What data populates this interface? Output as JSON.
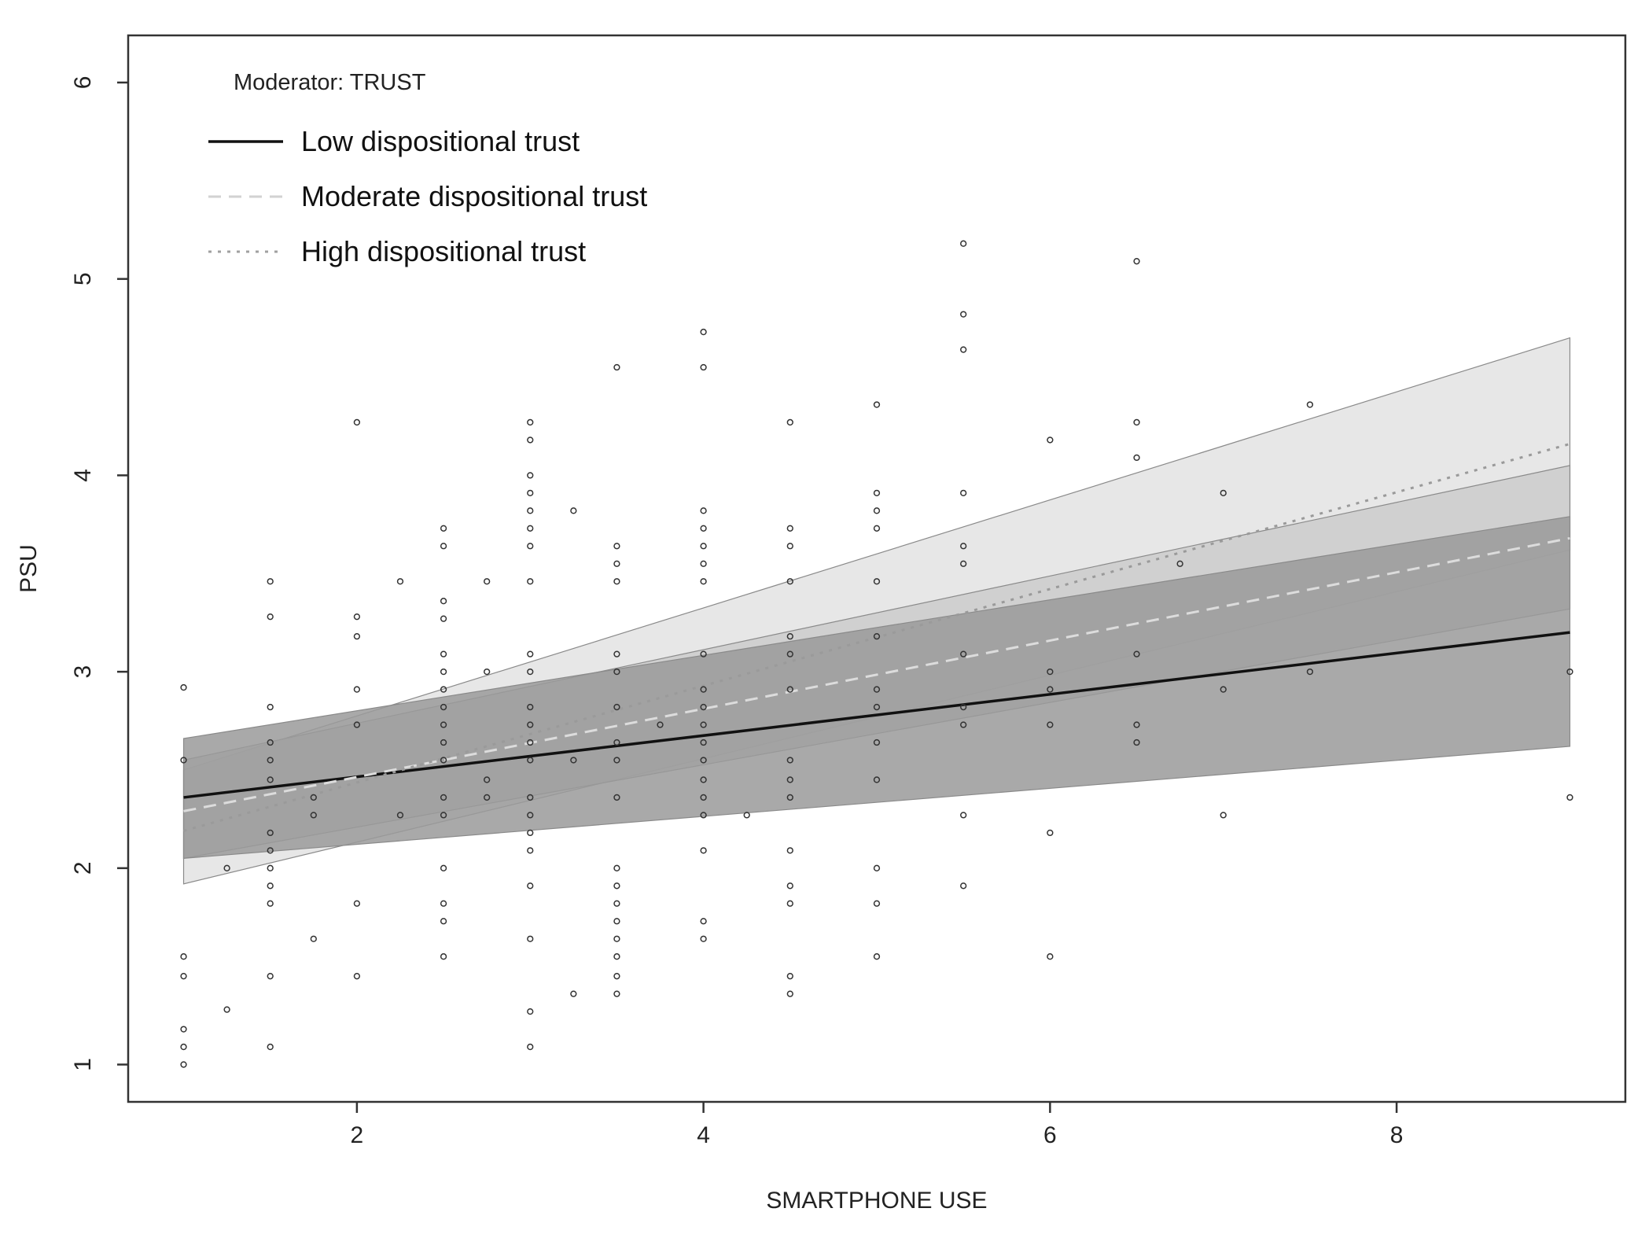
{
  "chart_data": {
    "type": "scatter",
    "title": "",
    "xlabel": "SMARTPHONE USE",
    "ylabel": "PSU",
    "xlim": [
      0.68,
      9.32
    ],
    "ylim": [
      0.81,
      6.24
    ],
    "x_ticks": [
      2,
      4,
      6,
      8
    ],
    "x_tick_labels": [
      "2",
      "4",
      "6",
      "8"
    ],
    "y_ticks": [
      1,
      2,
      3,
      4,
      5,
      6
    ],
    "y_tick_labels": [
      "1",
      "2",
      "3",
      "4",
      "5",
      "6"
    ],
    "grid": false,
    "legend": {
      "title": "Moderator: TRUST",
      "position": "top-left",
      "entries": [
        {
          "label": "Low dispositional trust",
          "style": "solid",
          "color": "#111111"
        },
        {
          "label": "Moderate dispositional trust",
          "style": "dashed",
          "color": "#d2d2d2"
        },
        {
          "label": "High dispositional trust",
          "style": "dotted",
          "color": "#a0a0a0"
        }
      ]
    },
    "series": [
      {
        "name": "Low dispositional trust",
        "line_style": "solid",
        "color": "#111111",
        "band_color": "#9a9a9a",
        "x": [
          1,
          9
        ],
        "y": [
          2.36,
          3.2
        ],
        "ci_lower": [
          2.05,
          2.62
        ],
        "ci_upper": [
          2.66,
          3.79
        ]
      },
      {
        "name": "Moderate dispositional trust",
        "line_style": "dashed",
        "color": "#dcdcdc",
        "band_color": "#c8c8c8",
        "x": [
          1,
          9
        ],
        "y": [
          2.29,
          3.68
        ],
        "ci_lower": [
          2.05,
          3.32
        ],
        "ci_upper": [
          2.55,
          4.05
        ]
      },
      {
        "name": "High dispositional trust",
        "line_style": "dotted",
        "color": "#9a9a9a",
        "band_color": "#e4e4e4",
        "x": [
          1,
          9
        ],
        "y": [
          2.19,
          4.16
        ],
        "ci_lower": [
          1.92,
          3.62
        ],
        "ci_upper": [
          2.5,
          4.7
        ]
      }
    ],
    "points": [
      [
        1,
        2.92
      ],
      [
        1,
        2.55
      ],
      [
        1,
        1.55
      ],
      [
        1,
        1.45
      ],
      [
        1,
        1.18
      ],
      [
        1,
        1.09
      ],
      [
        1,
        1.0
      ],
      [
        1.25,
        2.0
      ],
      [
        1.25,
        1.28
      ],
      [
        1.5,
        3.46
      ],
      [
        1.5,
        3.28
      ],
      [
        1.5,
        2.82
      ],
      [
        1.5,
        2.64
      ],
      [
        1.5,
        2.55
      ],
      [
        1.5,
        2.45
      ],
      [
        1.5,
        2.18
      ],
      [
        1.5,
        2.09
      ],
      [
        1.5,
        2.0
      ],
      [
        1.5,
        1.91
      ],
      [
        1.5,
        1.82
      ],
      [
        1.5,
        1.45
      ],
      [
        1.5,
        1.09
      ],
      [
        1.75,
        2.36
      ],
      [
        1.75,
        2.27
      ],
      [
        1.75,
        1.64
      ],
      [
        2,
        4.27
      ],
      [
        2,
        3.28
      ],
      [
        2,
        3.18
      ],
      [
        2,
        2.91
      ],
      [
        2,
        2.73
      ],
      [
        2,
        1.82
      ],
      [
        2,
        1.45
      ],
      [
        2.25,
        3.46
      ],
      [
        2.25,
        2.27
      ],
      [
        2.5,
        3.73
      ],
      [
        2.5,
        3.64
      ],
      [
        2.5,
        3.36
      ],
      [
        2.5,
        3.27
      ],
      [
        2.5,
        3.09
      ],
      [
        2.5,
        3.0
      ],
      [
        2.5,
        2.91
      ],
      [
        2.5,
        2.82
      ],
      [
        2.5,
        2.73
      ],
      [
        2.5,
        2.64
      ],
      [
        2.5,
        2.55
      ],
      [
        2.5,
        2.36
      ],
      [
        2.5,
        2.27
      ],
      [
        2.5,
        2.0
      ],
      [
        2.5,
        1.82
      ],
      [
        2.5,
        1.73
      ],
      [
        2.5,
        1.55
      ],
      [
        2.75,
        3.46
      ],
      [
        2.75,
        3.0
      ],
      [
        2.75,
        2.45
      ],
      [
        2.75,
        2.36
      ],
      [
        3,
        4.27
      ],
      [
        3,
        4.18
      ],
      [
        3,
        4.0
      ],
      [
        3,
        3.91
      ],
      [
        3,
        3.82
      ],
      [
        3,
        3.73
      ],
      [
        3,
        3.64
      ],
      [
        3,
        3.46
      ],
      [
        3,
        3.09
      ],
      [
        3,
        3.0
      ],
      [
        3,
        2.82
      ],
      [
        3,
        2.73
      ],
      [
        3,
        2.64
      ],
      [
        3,
        2.55
      ],
      [
        3,
        2.36
      ],
      [
        3,
        2.27
      ],
      [
        3,
        2.18
      ],
      [
        3,
        2.09
      ],
      [
        3,
        1.91
      ],
      [
        3,
        1.64
      ],
      [
        3,
        1.27
      ],
      [
        3,
        1.09
      ],
      [
        3.25,
        3.82
      ],
      [
        3.25,
        2.55
      ],
      [
        3.25,
        1.36
      ],
      [
        3.5,
        4.55
      ],
      [
        3.5,
        3.64
      ],
      [
        3.5,
        3.55
      ],
      [
        3.5,
        3.46
      ],
      [
        3.5,
        3.09
      ],
      [
        3.5,
        3.0
      ],
      [
        3.5,
        2.82
      ],
      [
        3.5,
        2.64
      ],
      [
        3.5,
        2.55
      ],
      [
        3.5,
        2.36
      ],
      [
        3.5,
        2.0
      ],
      [
        3.5,
        1.91
      ],
      [
        3.5,
        1.82
      ],
      [
        3.5,
        1.73
      ],
      [
        3.5,
        1.64
      ],
      [
        3.5,
        1.55
      ],
      [
        3.5,
        1.45
      ],
      [
        3.5,
        1.36
      ],
      [
        3.75,
        2.73
      ],
      [
        4,
        4.73
      ],
      [
        4,
        4.55
      ],
      [
        4,
        3.82
      ],
      [
        4,
        3.73
      ],
      [
        4,
        3.64
      ],
      [
        4,
        3.55
      ],
      [
        4,
        3.46
      ],
      [
        4,
        3.09
      ],
      [
        4,
        2.91
      ],
      [
        4,
        2.82
      ],
      [
        4,
        2.73
      ],
      [
        4,
        2.64
      ],
      [
        4,
        2.55
      ],
      [
        4,
        2.45
      ],
      [
        4,
        2.36
      ],
      [
        4,
        2.27
      ],
      [
        4,
        2.09
      ],
      [
        4,
        1.73
      ],
      [
        4,
        1.64
      ],
      [
        4.25,
        2.27
      ],
      [
        4.5,
        4.27
      ],
      [
        4.5,
        3.73
      ],
      [
        4.5,
        3.64
      ],
      [
        4.5,
        3.46
      ],
      [
        4.5,
        3.18
      ],
      [
        4.5,
        3.09
      ],
      [
        4.5,
        2.91
      ],
      [
        4.5,
        2.55
      ],
      [
        4.5,
        2.45
      ],
      [
        4.5,
        2.36
      ],
      [
        4.5,
        2.09
      ],
      [
        4.5,
        1.91
      ],
      [
        4.5,
        1.82
      ],
      [
        4.5,
        1.45
      ],
      [
        4.5,
        1.36
      ],
      [
        5,
        4.36
      ],
      [
        5,
        3.91
      ],
      [
        5,
        3.82
      ],
      [
        5,
        3.73
      ],
      [
        5,
        3.46
      ],
      [
        5,
        3.18
      ],
      [
        5,
        2.91
      ],
      [
        5,
        2.82
      ],
      [
        5,
        2.64
      ],
      [
        5,
        2.45
      ],
      [
        5,
        2.0
      ],
      [
        5,
        1.82
      ],
      [
        5,
        1.55
      ],
      [
        5.5,
        5.18
      ],
      [
        5.5,
        4.82
      ],
      [
        5.5,
        4.64
      ],
      [
        5.5,
        3.91
      ],
      [
        5.5,
        3.64
      ],
      [
        5.5,
        3.55
      ],
      [
        5.5,
        3.09
      ],
      [
        5.5,
        2.82
      ],
      [
        5.5,
        2.73
      ],
      [
        5.5,
        2.27
      ],
      [
        5.5,
        1.91
      ],
      [
        6,
        4.18
      ],
      [
        6,
        3.0
      ],
      [
        6,
        2.91
      ],
      [
        6,
        2.73
      ],
      [
        6,
        2.18
      ],
      [
        6,
        1.55
      ],
      [
        6.5,
        5.09
      ],
      [
        6.5,
        4.27
      ],
      [
        6.5,
        4.09
      ],
      [
        6.5,
        3.09
      ],
      [
        6.5,
        2.73
      ],
      [
        6.5,
        2.64
      ],
      [
        6.75,
        3.55
      ],
      [
        7,
        3.91
      ],
      [
        7,
        2.91
      ],
      [
        7,
        2.27
      ],
      [
        7.5,
        4.36
      ],
      [
        7.5,
        3.0
      ],
      [
        9,
        3.0
      ],
      [
        9,
        2.36
      ]
    ]
  }
}
